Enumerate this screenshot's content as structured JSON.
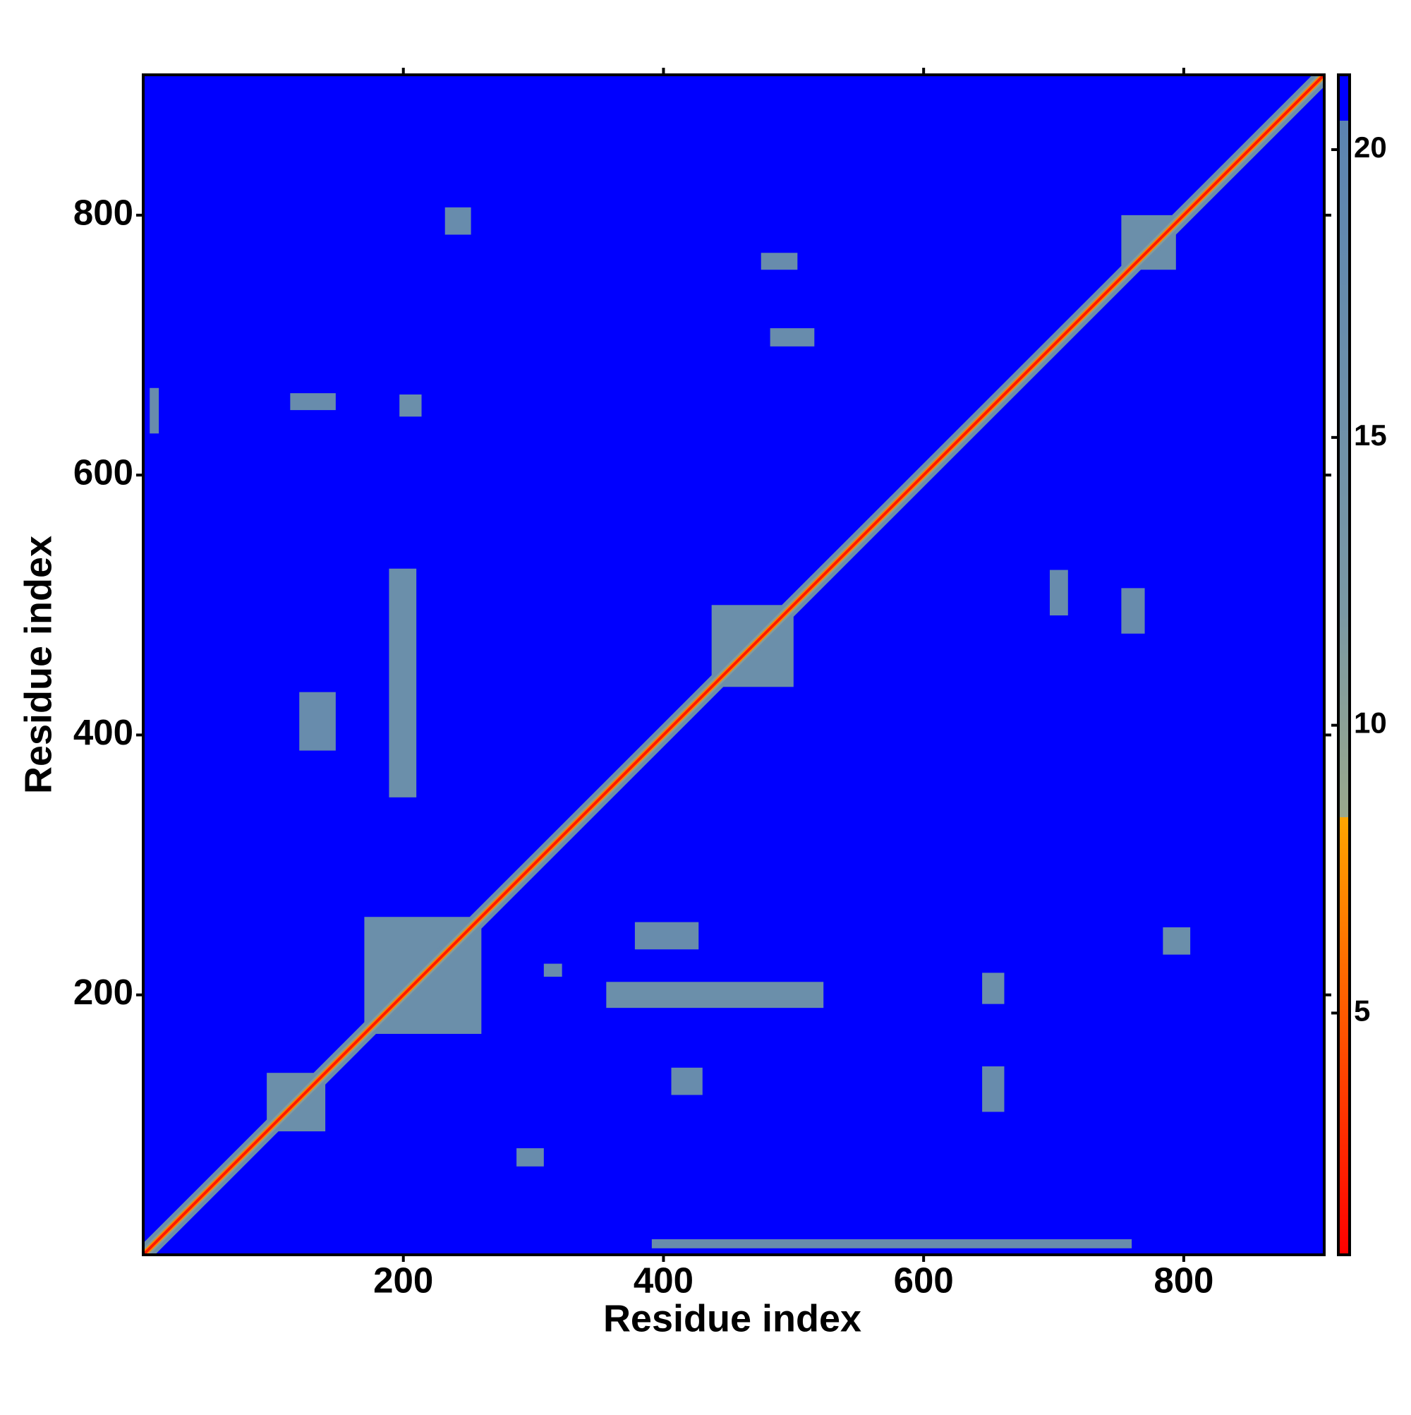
{
  "chart_data": {
    "type": "heatmap",
    "xlabel": "Residue index",
    "ylabel": "Residue index",
    "xlim": [
      0,
      908
    ],
    "ylim": [
      0,
      908
    ],
    "xticks": [
      200,
      400,
      600,
      800
    ],
    "yticks": [
      200,
      400,
      600,
      800
    ],
    "clim": [
      0.8,
      21.3
    ],
    "cticks": [
      5,
      10,
      15,
      20
    ],
    "colorscale": [
      [
        0.8,
        "#ff0000"
      ],
      [
        5,
        "#ff5a00"
      ],
      [
        8.4,
        "#ffa500"
      ],
      [
        8.4,
        "#9aa88c"
      ],
      [
        12,
        "#7a98a4"
      ],
      [
        20.5,
        "#5b84b1"
      ],
      [
        20.5,
        "#0000ff"
      ],
      [
        21.3,
        "#0000ff"
      ]
    ],
    "cells": [
      {
        "x": [
          0,
          908
        ],
        "y": [
          0,
          908
        ],
        "value": 21
      },
      {
        "x": [
          189,
          210
        ],
        "y": [
          352,
          528
        ],
        "value": 16
      },
      {
        "x": [
          197,
          214
        ],
        "y": [
          645,
          662
        ],
        "value": 16
      },
      {
        "x": [
          356,
          523
        ],
        "y": [
          190,
          210
        ],
        "value": 16
      },
      {
        "x": [
          120,
          148
        ],
        "y": [
          388,
          433
        ],
        "value": 17
      },
      {
        "x": [
          113,
          148
        ],
        "y": [
          650,
          663
        ],
        "value": 17
      },
      {
        "x": [
          645,
          662
        ],
        "y": [
          193,
          217
        ],
        "value": 16
      },
      {
        "x": [
          645,
          662
        ],
        "y": [
          110,
          145
        ],
        "value": 17
      },
      {
        "x": [
          752,
          770
        ],
        "y": [
          478,
          513
        ],
        "value": 17
      },
      {
        "x": [
          784,
          805
        ],
        "y": [
          231,
          252
        ],
        "value": 16
      },
      {
        "x": [
          232,
          252
        ],
        "y": [
          785,
          806
        ],
        "value": 17
      },
      {
        "x": [
          475,
          503
        ],
        "y": [
          758,
          771
        ],
        "value": 17
      },
      {
        "x": [
          378,
          427
        ],
        "y": [
          235,
          256
        ],
        "value": 17
      },
      {
        "x": [
          406,
          430
        ],
        "y": [
          123,
          144
        ],
        "value": 17
      },
      {
        "x": [
          391,
          760
        ],
        "y": [
          5,
          12
        ],
        "value": 17
      },
      {
        "x": [
          5,
          12
        ],
        "y": [
          632,
          667
        ],
        "value": 17
      },
      {
        "x": [
          287,
          308
        ],
        "y": [
          68,
          82
        ],
        "value": 17
      },
      {
        "x": [
          697,
          711
        ],
        "y": [
          492,
          527
        ],
        "value": 17
      },
      {
        "x": [
          482,
          516
        ],
        "y": [
          699,
          713
        ],
        "value": 17
      },
      {
        "x": [
          308,
          322
        ],
        "y": [
          214,
          224
        ],
        "value": 17
      },
      {
        "x": [
          752,
          794
        ],
        "y": [
          758,
          800
        ],
        "value": 16
      },
      {
        "x": [
          437,
          500
        ],
        "y": [
          437,
          500
        ],
        "value": 16
      },
      {
        "x": [
          170,
          260
        ],
        "y": [
          170,
          260
        ],
        "value": 16
      },
      {
        "x": [
          95,
          140
        ],
        "y": [
          95,
          140
        ],
        "value": 16
      }
    ],
    "diagonal_bands": [
      {
        "halfwidth": 9,
        "value": 16
      },
      {
        "halfwidth": 5,
        "value": 11
      },
      {
        "halfwidth": 3,
        "value": 7
      },
      {
        "halfwidth": 1.5,
        "value": 2
      }
    ]
  }
}
